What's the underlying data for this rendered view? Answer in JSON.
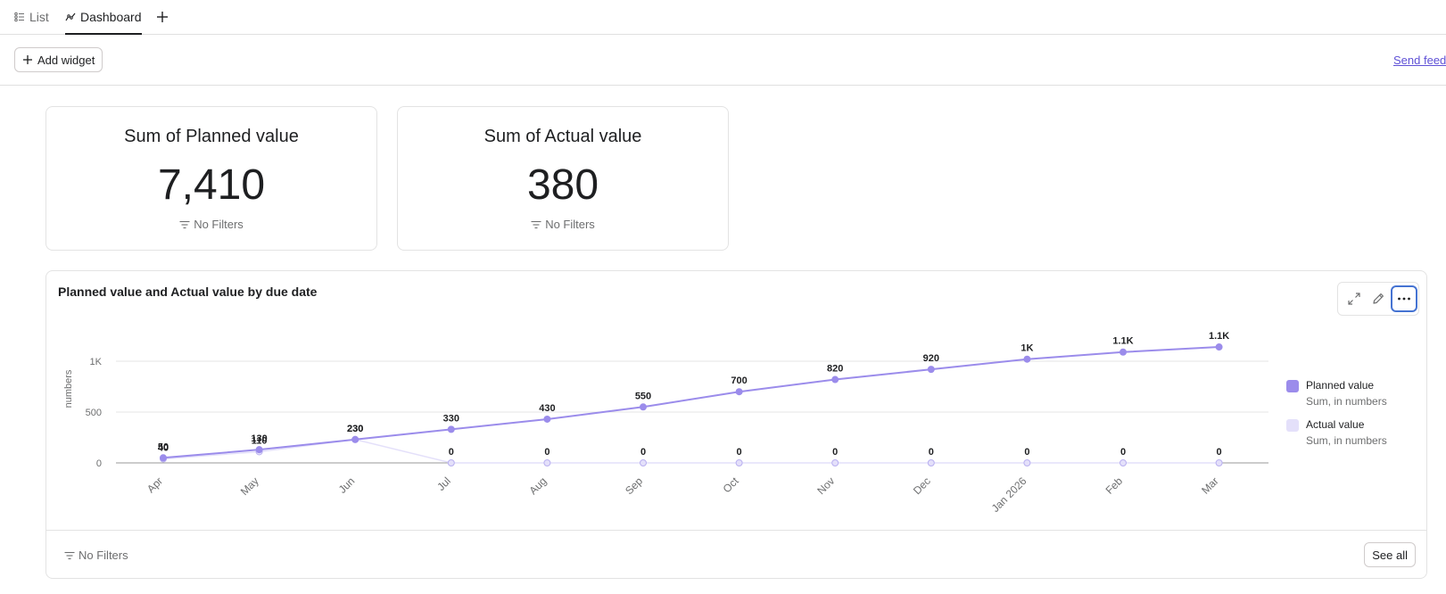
{
  "tabs": [
    {
      "label": "List",
      "icon": "list-icon"
    },
    {
      "label": "Dashboard",
      "icon": "chart-icon"
    }
  ],
  "toolbar": {
    "add_widget_label": "Add widget",
    "feedback_label": "Send feedb"
  },
  "cards": [
    {
      "title": "Sum of Planned value",
      "value": "7,410",
      "filters": "No Filters"
    },
    {
      "title": "Sum of Actual value",
      "value": "380",
      "filters": "No Filters"
    }
  ],
  "chart_widget": {
    "title": "Planned value and Actual value by due date",
    "filters_label": "No Filters",
    "see_all_label": "See all",
    "legend": [
      {
        "name": "Planned value",
        "sub": "Sum, in numbers",
        "color": "#9b8ceb"
      },
      {
        "name": "Actual value",
        "sub": "Sum, in numbers",
        "color": "#e4e0fa"
      }
    ]
  },
  "chart_data": {
    "type": "line",
    "title": "Planned value and Actual value by due date",
    "xlabel": "",
    "ylabel": "numbers",
    "categories": [
      "Apr",
      "May",
      "Jun",
      "Jul",
      "Aug",
      "Sep",
      "Oct",
      "Nov",
      "Dec",
      "Jan 2026",
      "Feb",
      "Mar"
    ],
    "y_ticks": [
      "0",
      "500",
      "1K"
    ],
    "ylim": [
      0,
      1150
    ],
    "grid": true,
    "legend_position": "right",
    "series": [
      {
        "name": "Planned value",
        "color": "#9b8ceb",
        "values": [
          50,
          130,
          230,
          330,
          430,
          550,
          700,
          820,
          920,
          1020,
          1090,
          1140
        ],
        "labels": [
          "50",
          "130",
          "230",
          "330",
          "430",
          "550",
          "700",
          "820",
          "920",
          "1K",
          "1.1K",
          "1.1K"
        ]
      },
      {
        "name": "Actual value",
        "color": "#e4e0fa",
        "values": [
          40,
          110,
          230,
          0,
          0,
          0,
          0,
          0,
          0,
          0,
          0,
          0
        ],
        "labels": [
          "40",
          "110",
          "230",
          "0",
          "0",
          "0",
          "0",
          "0",
          "0",
          "0",
          "0",
          "0"
        ]
      }
    ]
  }
}
